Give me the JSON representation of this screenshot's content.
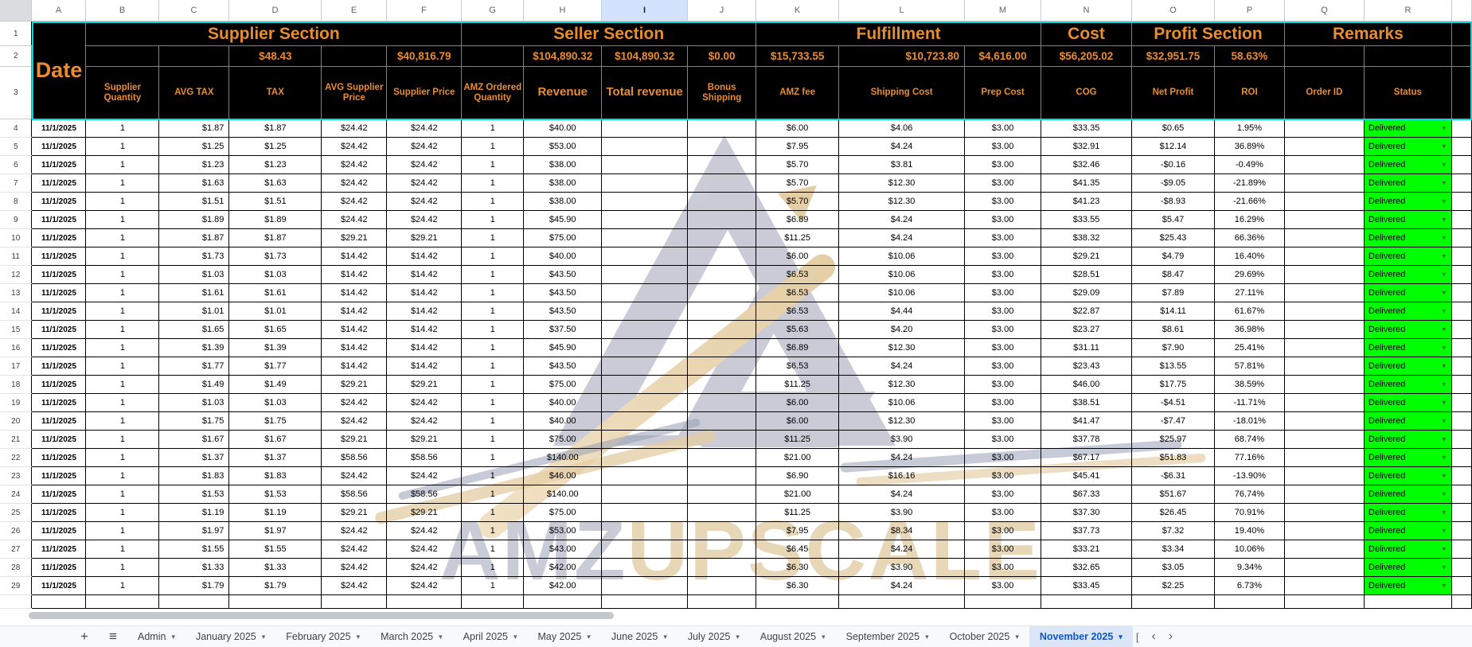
{
  "colors": {
    "accent_orange": "#EA8C30",
    "header_bg": "#000000",
    "frozen_border": "#00DCDC",
    "status_green": "#00FF00",
    "active_tab_blue": "#0B57D0"
  },
  "icons": {
    "plus": "+",
    "menu": "≡",
    "caret_down": "▾",
    "nav_left": "‹",
    "nav_right": "›",
    "cell_dropdown": "▼",
    "partial_tab": "["
  },
  "sheet": {
    "column_letters": [
      "A",
      "B",
      "C",
      "D",
      "E",
      "F",
      "G",
      "H",
      "I",
      "J",
      "K",
      "L",
      "M",
      "N",
      "O",
      "P",
      "Q",
      "R"
    ],
    "selected_column": "I",
    "header_row_numbers": [
      "1",
      "2",
      "3"
    ],
    "date_label": "Date",
    "sections": {
      "supplier": "Supplier Section",
      "seller": "Seller Section",
      "fulfillment": "Fulfillment",
      "cost": "Cost",
      "profit": "Profit Section",
      "remarks": "Remarks"
    },
    "summary": {
      "tax": "$48.43",
      "supplier_price": "$40,816.79",
      "revenue": "$104,890.32",
      "total_revenue": "$104,890.32",
      "bonus_shipping": "$0.00",
      "amz_fee": "$15,733.55",
      "shipping_cost": "$10,723.80",
      "prep_cost": "$4,616.00",
      "cog": "$56,205.02",
      "net_profit": "$32,951.75",
      "roi": "58.63%"
    },
    "col_headers": [
      "Supplier Quantity",
      "AVG TAX",
      "TAX",
      "AVG Supplier Price",
      "Supplier Price",
      "AMZ Ordered Quantity",
      "Revenue",
      "Total revenue",
      "Bonus Shipping",
      "AMZ fee",
      "Shipping Cost",
      "Prep Cost",
      "COG",
      "Net Profit",
      "ROI",
      "Order ID",
      "Status"
    ],
    "rows": [
      [
        "4",
        "11/1/2025",
        "1",
        "$1.87",
        "$1.87",
        "$24.42",
        "$24.42",
        "1",
        "$40.00",
        "$6.00",
        "$4.06",
        "$3.00",
        "$33.35",
        "$0.65",
        "1.95%",
        "Delivered"
      ],
      [
        "5",
        "11/1/2025",
        "1",
        "$1.25",
        "$1.25",
        "$24.42",
        "$24.42",
        "1",
        "$53.00",
        "$7.95",
        "$4.24",
        "$3.00",
        "$32.91",
        "$12.14",
        "36.89%",
        "Delivered"
      ],
      [
        "6",
        "11/1/2025",
        "1",
        "$1.23",
        "$1.23",
        "$24.42",
        "$24.42",
        "1",
        "$38.00",
        "$5.70",
        "$3.81",
        "$3.00",
        "$32.46",
        "-$0.16",
        "-0.49%",
        "Delivered"
      ],
      [
        "7",
        "11/1/2025",
        "1",
        "$1.63",
        "$1.63",
        "$24.42",
        "$24.42",
        "1",
        "$38.00",
        "$5.70",
        "$12.30",
        "$3.00",
        "$41.35",
        "-$9.05",
        "-21.89%",
        "Delivered"
      ],
      [
        "8",
        "11/1/2025",
        "1",
        "$1.51",
        "$1.51",
        "$24.42",
        "$24.42",
        "1",
        "$38.00",
        "$5.70",
        "$12.30",
        "$3.00",
        "$41.23",
        "-$8.93",
        "-21.66%",
        "Delivered"
      ],
      [
        "9",
        "11/1/2025",
        "1",
        "$1.89",
        "$1.89",
        "$24.42",
        "$24.42",
        "1",
        "$45.90",
        "$6.89",
        "$4.24",
        "$3.00",
        "$33.55",
        "$5.47",
        "16.29%",
        "Delivered"
      ],
      [
        "10",
        "11/1/2025",
        "1",
        "$1.87",
        "$1.87",
        "$29.21",
        "$29.21",
        "1",
        "$75.00",
        "$11.25",
        "$4.24",
        "$3.00",
        "$38.32",
        "$25.43",
        "66.36%",
        "Delivered"
      ],
      [
        "11",
        "11/1/2025",
        "1",
        "$1.73",
        "$1.73",
        "$14.42",
        "$14.42",
        "1",
        "$40.00",
        "$6.00",
        "$10.06",
        "$3.00",
        "$29.21",
        "$4.79",
        "16.40%",
        "Delivered"
      ],
      [
        "12",
        "11/1/2025",
        "1",
        "$1.03",
        "$1.03",
        "$14.42",
        "$14.42",
        "1",
        "$43.50",
        "$6.53",
        "$10.06",
        "$3.00",
        "$28.51",
        "$8.47",
        "29.69%",
        "Delivered"
      ],
      [
        "13",
        "11/1/2025",
        "1",
        "$1.61",
        "$1.61",
        "$14.42",
        "$14.42",
        "1",
        "$43.50",
        "$6.53",
        "$10.06",
        "$3.00",
        "$29.09",
        "$7.89",
        "27.11%",
        "Delivered"
      ],
      [
        "14",
        "11/1/2025",
        "1",
        "$1.01",
        "$1.01",
        "$14.42",
        "$14.42",
        "1",
        "$43.50",
        "$6.53",
        "$4.44",
        "$3.00",
        "$22.87",
        "$14.11",
        "61.67%",
        "Delivered"
      ],
      [
        "15",
        "11/1/2025",
        "1",
        "$1.65",
        "$1.65",
        "$14.42",
        "$14.42",
        "1",
        "$37.50",
        "$5.63",
        "$4.20",
        "$3.00",
        "$23.27",
        "$8.61",
        "36.98%",
        "Delivered"
      ],
      [
        "16",
        "11/1/2025",
        "1",
        "$1.39",
        "$1.39",
        "$14.42",
        "$14.42",
        "1",
        "$45.90",
        "$6.89",
        "$12.30",
        "$3.00",
        "$31.11",
        "$7.90",
        "25.41%",
        "Delivered"
      ],
      [
        "17",
        "11/1/2025",
        "1",
        "$1.77",
        "$1.77",
        "$14.42",
        "$14.42",
        "1",
        "$43.50",
        "$6.53",
        "$4.24",
        "$3.00",
        "$23.43",
        "$13.55",
        "57.81%",
        "Delivered"
      ],
      [
        "18",
        "11/1/2025",
        "1",
        "$1.49",
        "$1.49",
        "$29.21",
        "$29.21",
        "1",
        "$75.00",
        "$11.25",
        "$12.30",
        "$3.00",
        "$46.00",
        "$17.75",
        "38.59%",
        "Delivered"
      ],
      [
        "19",
        "11/1/2025",
        "1",
        "$1.03",
        "$1.03",
        "$24.42",
        "$24.42",
        "1",
        "$40.00",
        "$6.00",
        "$10.06",
        "$3.00",
        "$38.51",
        "-$4.51",
        "-11.71%",
        "Delivered"
      ],
      [
        "20",
        "11/1/2025",
        "1",
        "$1.75",
        "$1.75",
        "$24.42",
        "$24.42",
        "1",
        "$40.00",
        "$6.00",
        "$12.30",
        "$3.00",
        "$41.47",
        "-$7.47",
        "-18.01%",
        "Delivered"
      ],
      [
        "21",
        "11/1/2025",
        "1",
        "$1.67",
        "$1.67",
        "$29.21",
        "$29.21",
        "1",
        "$75.00",
        "$11.25",
        "$3.90",
        "$3.00",
        "$37.78",
        "$25.97",
        "68.74%",
        "Delivered"
      ],
      [
        "22",
        "11/1/2025",
        "1",
        "$1.37",
        "$1.37",
        "$58.56",
        "$58.56",
        "1",
        "$140.00",
        "$21.00",
        "$4.24",
        "$3.00",
        "$67.17",
        "$51.83",
        "77.16%",
        "Delivered"
      ],
      [
        "23",
        "11/1/2025",
        "1",
        "$1.83",
        "$1.83",
        "$24.42",
        "$24.42",
        "1",
        "$46.00",
        "$6.90",
        "$16.16",
        "$3.00",
        "$45.41",
        "-$6.31",
        "-13.90%",
        "Delivered"
      ],
      [
        "24",
        "11/1/2025",
        "1",
        "$1.53",
        "$1.53",
        "$58.56",
        "$58.56",
        "1",
        "$140.00",
        "$21.00",
        "$4.24",
        "$3.00",
        "$67.33",
        "$51.67",
        "76.74%",
        "Delivered"
      ],
      [
        "25",
        "11/1/2025",
        "1",
        "$1.19",
        "$1.19",
        "$29.21",
        "$29.21",
        "1",
        "$75.00",
        "$11.25",
        "$3.90",
        "$3.00",
        "$37.30",
        "$26.45",
        "70.91%",
        "Delivered"
      ],
      [
        "26",
        "11/1/2025",
        "1",
        "$1.97",
        "$1.97",
        "$24.42",
        "$24.42",
        "1",
        "$53.00",
        "$7.95",
        "$8.34",
        "$3.00",
        "$37.73",
        "$7.32",
        "19.40%",
        "Delivered"
      ],
      [
        "27",
        "11/1/2025",
        "1",
        "$1.55",
        "$1.55",
        "$24.42",
        "$24.42",
        "1",
        "$43.00",
        "$6.45",
        "$4.24",
        "$3.00",
        "$33.21",
        "$3.34",
        "10.06%",
        "Delivered"
      ],
      [
        "28",
        "11/1/2025",
        "1",
        "$1.33",
        "$1.33",
        "$24.42",
        "$24.42",
        "1",
        "$42.00",
        "$6.30",
        "$3.90",
        "$3.00",
        "$32.65",
        "$3.05",
        "9.34%",
        "Delivered"
      ],
      [
        "29",
        "11/1/2025",
        "1",
        "$1.79",
        "$1.79",
        "$24.42",
        "$24.42",
        "1",
        "$42.00",
        "$6.30",
        "$4.24",
        "$3.00",
        "$33.45",
        "$2.25",
        "6.73%",
        "Delivered"
      ]
    ]
  },
  "watermark": {
    "brand_gray": "AMZ",
    "brand_gold": "UPSCALE"
  },
  "footer": {
    "tabs": [
      {
        "label": "Admin",
        "active": false
      },
      {
        "label": "January 2025",
        "active": false
      },
      {
        "label": "February 2025",
        "active": false
      },
      {
        "label": "March 2025",
        "active": false
      },
      {
        "label": "April 2025",
        "active": false
      },
      {
        "label": "May 2025",
        "active": false
      },
      {
        "label": "June 2025",
        "active": false
      },
      {
        "label": "July 2025",
        "active": false
      },
      {
        "label": "August 2025",
        "active": false
      },
      {
        "label": "September 2025",
        "active": false
      },
      {
        "label": "October 2025",
        "active": false
      },
      {
        "label": "November 2025",
        "active": true
      }
    ]
  }
}
